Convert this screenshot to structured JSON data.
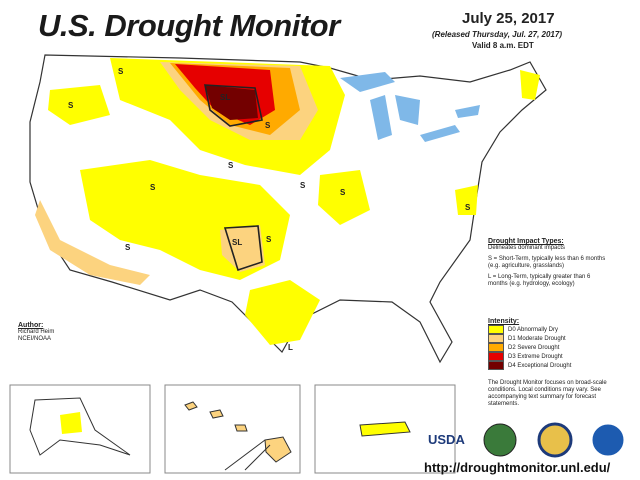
{
  "title": "U.S. Drought Monitor",
  "date": "July 25, 2017",
  "released": "(Released Thursday, Jul. 27, 2017)",
  "valid": "Valid 8 a.m. EDT",
  "impact_types": {
    "heading": "Drought Impact Types:",
    "delineates": "Delineates dominant impacts",
    "short_term": "S = Short-Term, typically less than 6 months (e.g. agriculture, grasslands)",
    "long_term": "L = Long-Term, typically greater than 6 months (e.g. hydrology, ecology)"
  },
  "intensity": {
    "heading": "Intensity:",
    "levels": [
      {
        "label": "D0 Abnormally Dry",
        "color": "#ffff00"
      },
      {
        "label": "D1 Moderate Drought",
        "color": "#fcd37f"
      },
      {
        "label": "D2 Severe Drought",
        "color": "#ffaa00"
      },
      {
        "label": "D3 Extreme Drought",
        "color": "#e60000"
      },
      {
        "label": "D4 Exceptional Drought",
        "color": "#730000"
      }
    ]
  },
  "author": {
    "heading": "Author:",
    "name": "Richard Heim",
    "org": "NCEI/NOAA"
  },
  "note": "The Drought Monitor focuses on broad-scale conditions. Local conditions may vary. See accompanying text summary for forecast statements.",
  "agency": "USDA",
  "url": "http://droughtmonitor.unl.edu/",
  "map_labels": [
    "S",
    "S",
    "SL",
    "S",
    "S",
    "S",
    "S",
    "S",
    "SL",
    "S",
    "S",
    "S",
    "L"
  ]
}
